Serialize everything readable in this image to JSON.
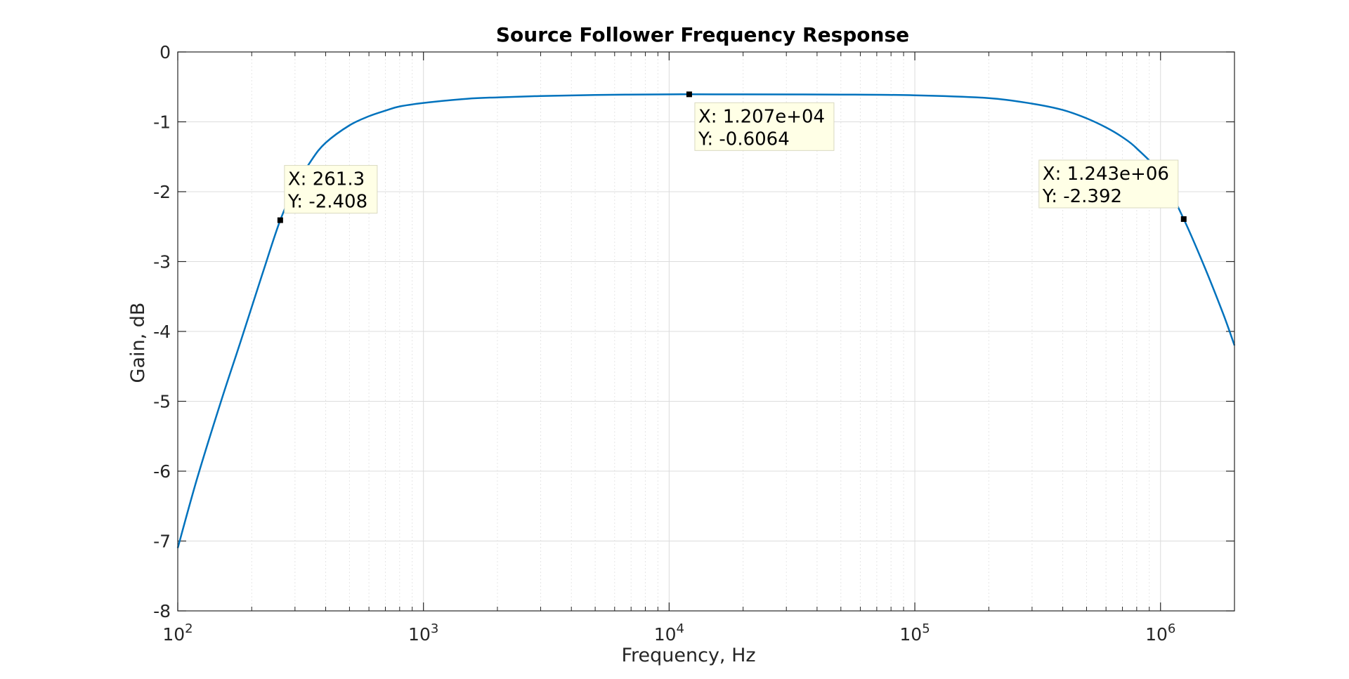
{
  "chart_data": {
    "type": "line",
    "title": "Source Follower Frequency Response",
    "xlabel": "Frequency, Hz",
    "ylabel": "Gain, dB",
    "x_scale": "log",
    "xlim": [
      100,
      2000000
    ],
    "ylim": [
      -8,
      0
    ],
    "grid": true,
    "x_ticks": [
      {
        "value": 100,
        "base": "10",
        "exp": "2"
      },
      {
        "value": 1000,
        "base": "10",
        "exp": "3"
      },
      {
        "value": 10000,
        "base": "10",
        "exp": "4"
      },
      {
        "value": 100000,
        "base": "10",
        "exp": "5"
      },
      {
        "value": 1000000,
        "base": "10",
        "exp": "6"
      }
    ],
    "y_ticks": [
      "0",
      "-1",
      "-2",
      "-3",
      "-4",
      "-5",
      "-6",
      "-7",
      "-8"
    ],
    "series": [
      {
        "color": "#0072BD",
        "x": [
          100,
          120,
          150,
          180,
          220,
          261.3,
          300,
          350,
          400,
          500,
          600,
          700,
          800,
          1000,
          1500,
          2000,
          3000,
          5000,
          10000,
          12070,
          20000,
          50000,
          100000,
          200000,
          300000,
          400000,
          500000,
          600000,
          700000,
          800000,
          1000000,
          1243000,
          1500000,
          1800000,
          2000000
        ],
        "y": [
          -7.1,
          -6.1,
          -5.0,
          -4.15,
          -3.2,
          -2.408,
          -1.95,
          -1.55,
          -1.3,
          -1.05,
          -0.92,
          -0.84,
          -0.78,
          -0.73,
          -0.67,
          -0.65,
          -0.63,
          -0.615,
          -0.607,
          -0.6064,
          -0.607,
          -0.61,
          -0.62,
          -0.66,
          -0.74,
          -0.83,
          -0.95,
          -1.08,
          -1.22,
          -1.38,
          -1.75,
          -2.392,
          -3.05,
          -3.75,
          -4.2
        ]
      }
    ],
    "datatips": [
      {
        "x": 261.3,
        "y": -2.408,
        "x_label": "X: 261.3",
        "y_label": "Y: -2.408"
      },
      {
        "x": 12070,
        "y": -0.6064,
        "x_label": "X: 1.207e+04",
        "y_label": "Y: -0.6064"
      },
      {
        "x": 1243000,
        "y": -2.392,
        "x_label": "X: 1.243e+06",
        "y_label": "Y: -2.392"
      }
    ]
  }
}
